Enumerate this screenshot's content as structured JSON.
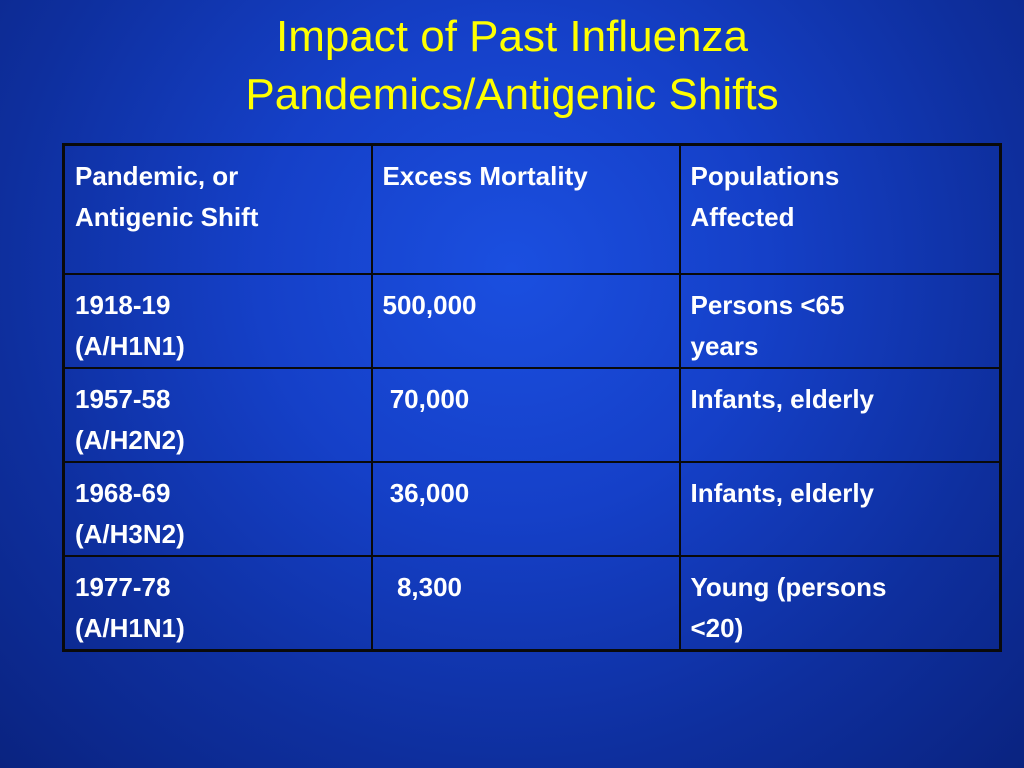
{
  "title": {
    "line1": "Impact of Past Influenza",
    "line2": "Pandemics/Antigenic Shifts"
  },
  "table": {
    "headers": [
      [
        "Pandemic, or",
        "Antigenic Shift"
      ],
      [
        "Excess Mortality"
      ],
      [
        "Populations",
        "Affected"
      ]
    ],
    "rows": [
      {
        "pandemic": [
          "1918-19",
          "(A/H1N1)"
        ],
        "mortality": "500,000",
        "populations": [
          "Persons <65",
          "years"
        ]
      },
      {
        "pandemic": [
          "1957-58",
          "(A/H2N2)"
        ],
        "mortality": " 70,000",
        "populations": [
          "Infants, elderly"
        ]
      },
      {
        "pandemic": [
          "1968-69",
          "(A/H3N2)"
        ],
        "mortality": " 36,000",
        "populations": [
          "Infants, elderly"
        ]
      },
      {
        "pandemic": [
          "1977-78",
          "(A/H1N1)"
        ],
        "mortality": "  8,300",
        "populations": [
          "Young (persons",
          "<20)"
        ]
      }
    ]
  },
  "colors": {
    "title": "#ffff00",
    "text": "#ffffff",
    "background": "#1540c8",
    "grid": "#0a0a0a"
  }
}
